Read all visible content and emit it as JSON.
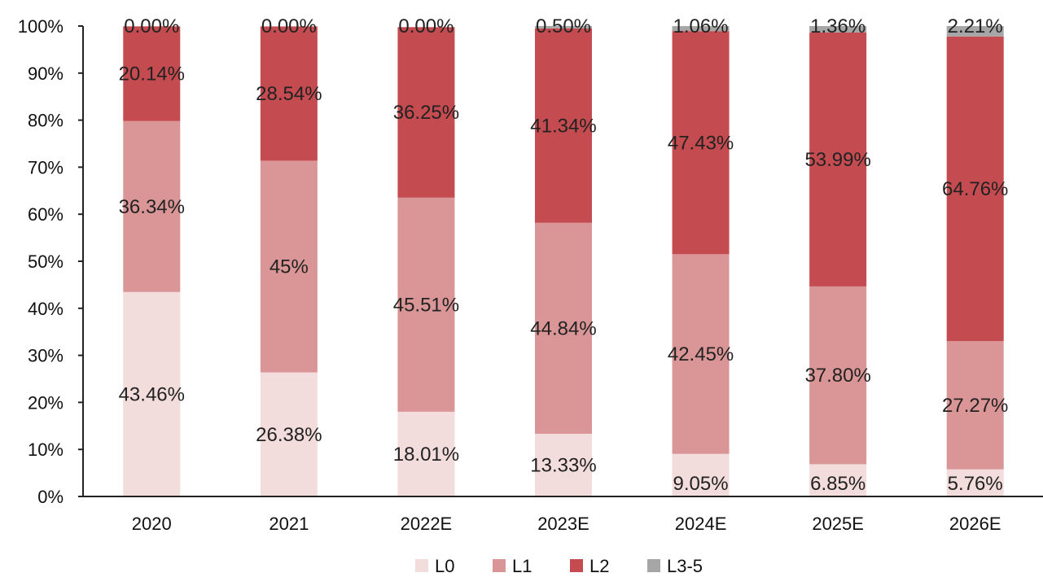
{
  "chart_data": {
    "type": "bar",
    "stacked": true,
    "categories": [
      "2020",
      "2021",
      "2022E",
      "2023E",
      "2024E",
      "2025E",
      "2026E"
    ],
    "series": [
      {
        "name": "L0",
        "color": "#f2dcdc",
        "values": [
          43.46,
          26.38,
          18.01,
          13.33,
          9.05,
          6.85,
          5.76
        ],
        "labels": [
          "43.46%",
          "26.38%",
          "18.01%",
          "13.33%",
          "9.05%",
          "6.85%",
          "5.76%"
        ]
      },
      {
        "name": "L1",
        "color": "#da9696",
        "values": [
          36.34,
          45,
          45.51,
          44.84,
          42.45,
          37.8,
          27.27
        ],
        "labels": [
          "36.34%",
          "45%",
          "45.51%",
          "44.84%",
          "42.45%",
          "37.80%",
          "27.27%"
        ]
      },
      {
        "name": "L2",
        "color": "#c44b4f",
        "values": [
          20.14,
          28.54,
          36.25,
          41.34,
          47.43,
          53.99,
          64.76
        ],
        "labels": [
          "20.14%",
          "28.54%",
          "36.25%",
          "41.34%",
          "47.43%",
          "53.99%",
          "64.76%"
        ]
      },
      {
        "name": "L3-5",
        "color": "#a6a6a6",
        "values": [
          0.0,
          0.0,
          0.0,
          0.5,
          1.06,
          1.36,
          2.21
        ],
        "labels": [
          "0.00%",
          "0.00%",
          "0.00%",
          "0.50%",
          "1.06%",
          "1.36%",
          "2.21%"
        ]
      }
    ],
    "yticks": [
      "0%",
      "10%",
      "20%",
      "30%",
      "40%",
      "50%",
      "60%",
      "70%",
      "80%",
      "90%",
      "100%"
    ],
    "ylim": [
      0,
      100
    ],
    "title": "",
    "xlabel": "",
    "ylabel": "",
    "grid": false,
    "legend_position": "bottom"
  }
}
